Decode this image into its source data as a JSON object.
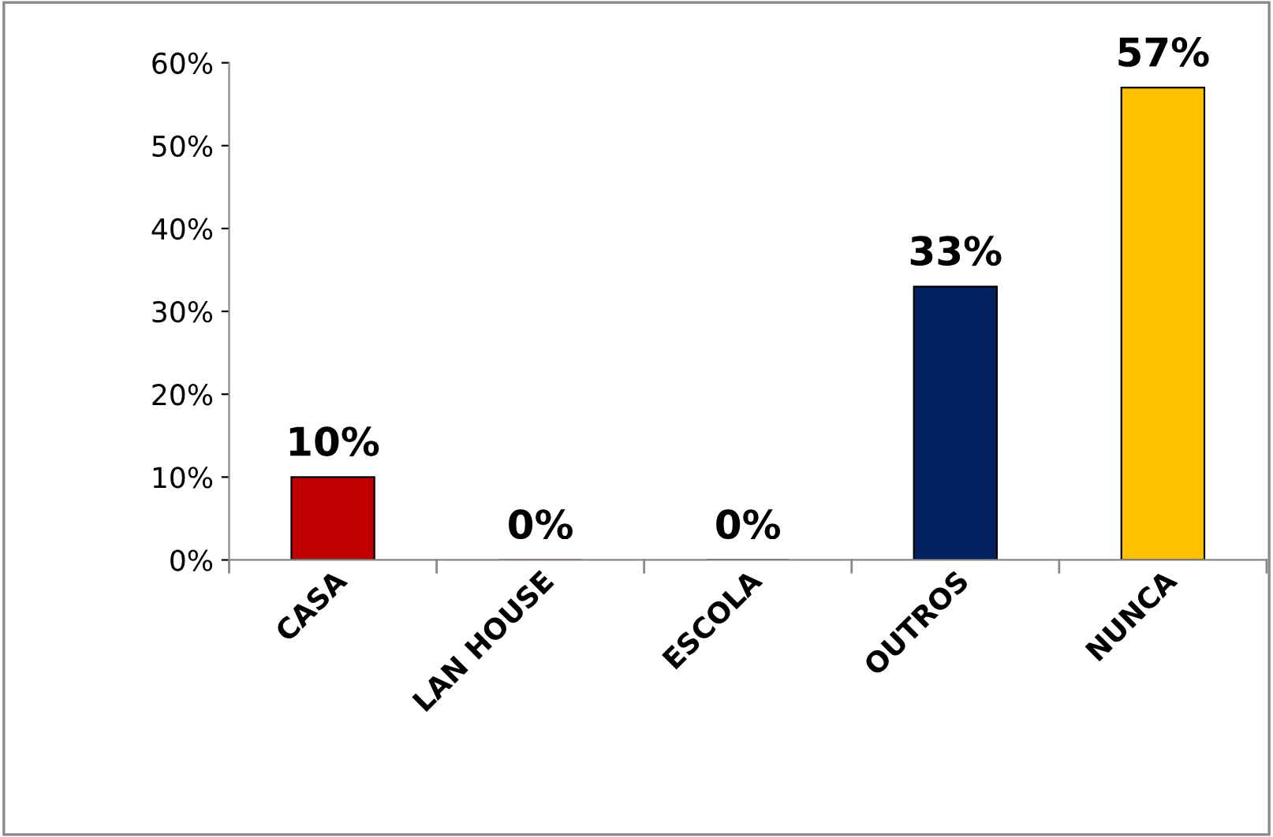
{
  "chart_data": {
    "type": "bar",
    "categories": [
      "CASA",
      "LAN HOUSE",
      "ESCOLA",
      "OUTROS",
      "NUNCA"
    ],
    "values": [
      10,
      0,
      0,
      33,
      57
    ],
    "colors": [
      "#c00000",
      "#c00000",
      "#002060",
      "#002060",
      "#ffc000"
    ],
    "value_labels": [
      "10%",
      "0%",
      "0%",
      "33%",
      "57%"
    ],
    "ylim": [
      0,
      60
    ],
    "yticks": [
      {
        "value": 0,
        "label": "0%"
      },
      {
        "value": 10,
        "label": "10%"
      },
      {
        "value": 20,
        "label": "20%"
      },
      {
        "value": 30,
        "label": "30%"
      },
      {
        "value": 40,
        "label": "40%"
      },
      {
        "value": 50,
        "label": "50%"
      },
      {
        "value": 60,
        "label": "60%"
      }
    ],
    "grid": false,
    "legend": false
  }
}
